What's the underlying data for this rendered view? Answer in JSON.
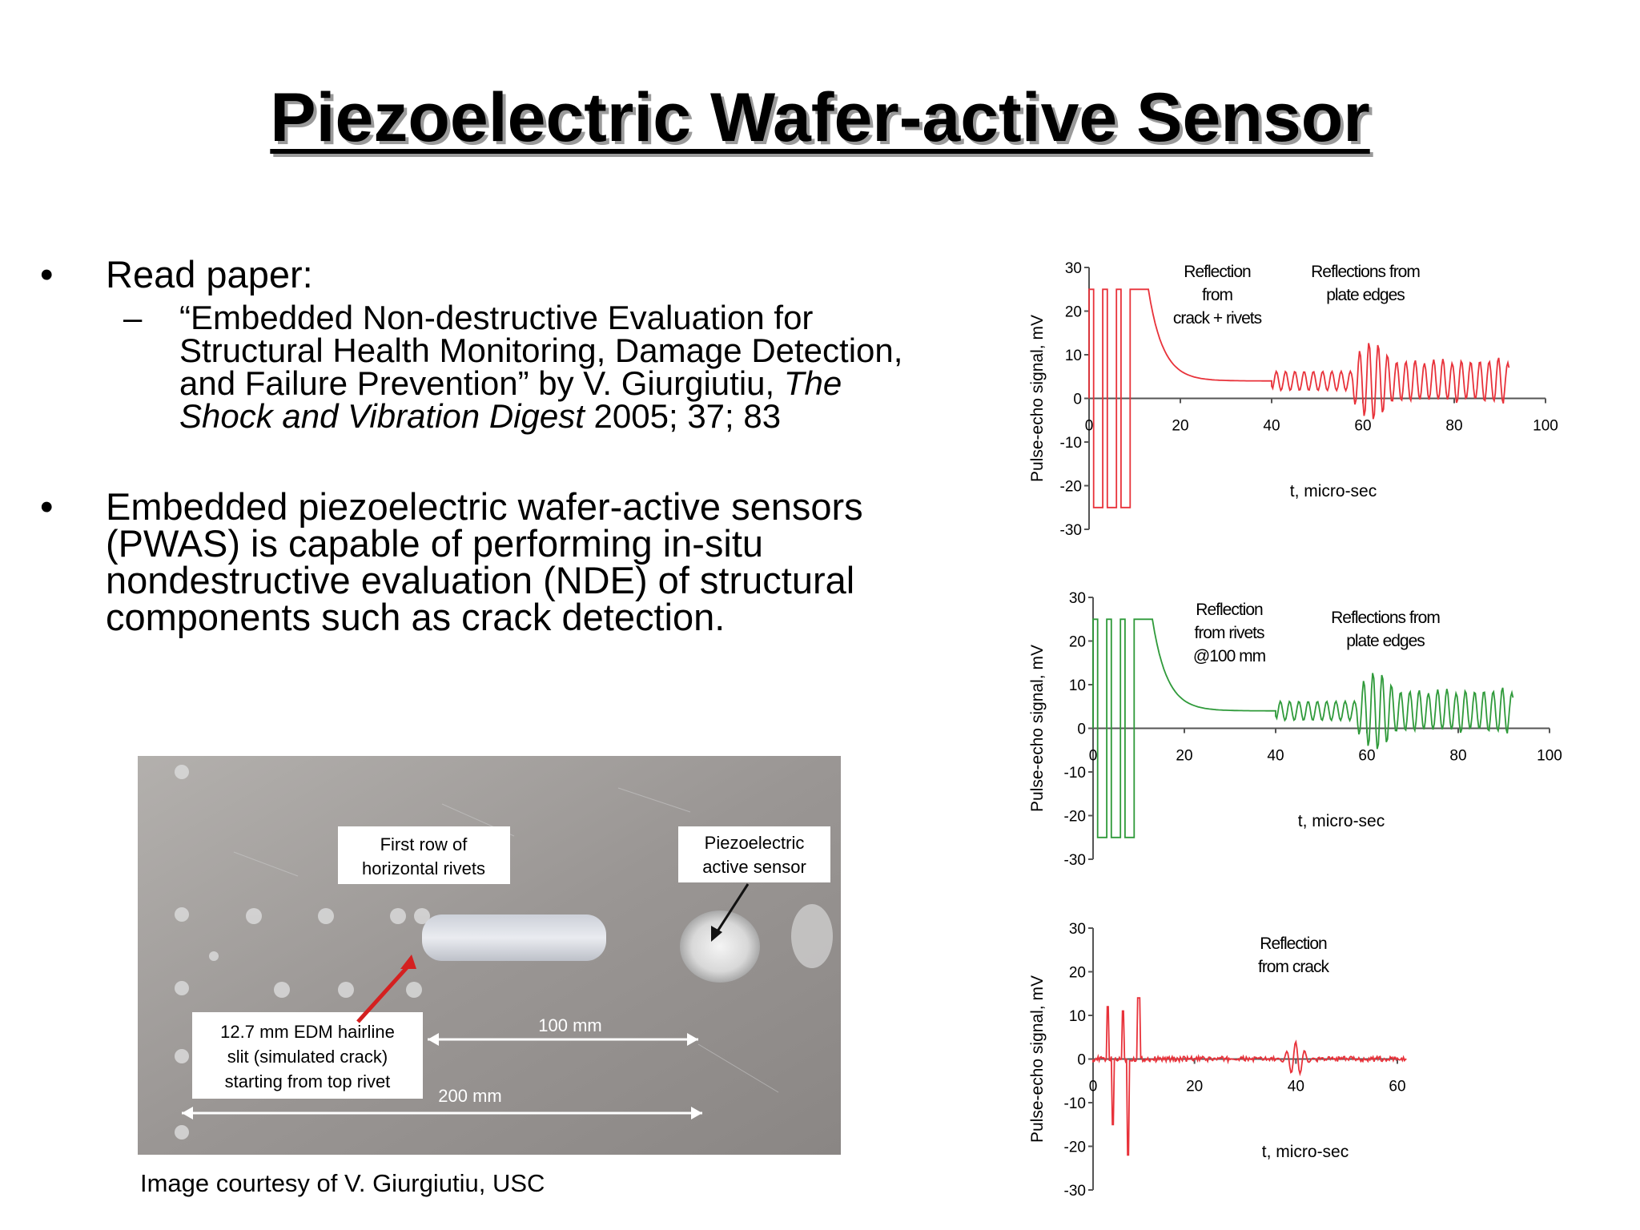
{
  "slide": {
    "title": "Piezoelectric Wafer-active Sensor",
    "bullets": [
      {
        "marker": "•",
        "text": "Read paper:",
        "sub": {
          "marker": "–",
          "lines": [
            "“Embedded Non-destructive Evaluation for",
            "Structural Health Monitoring, Damage Detection,",
            "and Failure Prevention” by V. Giurgiutiu, "
          ],
          "italic_1": "The",
          "italic_2": "Shock and Vibration Digest",
          "tail": " 2005; 37; 83"
        }
      },
      {
        "marker": "•",
        "lines": [
          "Embedded piezoelectric wafer-active sensors",
          "(PWAS) is capable of performing in-situ",
          "nondestructive evaluation (NDE) of structural",
          "components such as crack detection."
        ]
      }
    ],
    "credit": "Image courtesy of V. Giurgiutiu, USC"
  },
  "photo": {
    "label_rivets": [
      "First row of",
      "horizontal rivets"
    ],
    "label_sensor": [
      "Piezoelectric",
      "active sensor"
    ],
    "label_crack": [
      "12.7 mm EDM hairline",
      "slit (simulated crack)",
      "starting from top rivet"
    ],
    "dim_100": "100 mm",
    "dim_200": "200 mm",
    "colors": {
      "plate": "#9a9694",
      "arrow": "#d42020"
    }
  },
  "chart_data": [
    {
      "type": "line",
      "color": "#e8323a",
      "ylabel": "Pulse-echo signal, mV",
      "xlabel": "t, micro-sec",
      "xlim": [
        0,
        100
      ],
      "ylim": [
        -30,
        30
      ],
      "xticks": [
        0,
        20,
        40,
        60,
        80,
        100
      ],
      "yticks": [
        30,
        20,
        10,
        0,
        -10,
        -20,
        -30
      ],
      "annotations": [
        {
          "lines": [
            "Reflection",
            "from",
            "crack + rivets"
          ]
        },
        {
          "lines": [
            "Reflections from",
            "plate edges"
          ]
        }
      ],
      "signal": {
        "pulses_start": 0,
        "pulses_end": 13,
        "decay_end": 40,
        "end": 92,
        "baseline": 4
      }
    },
    {
      "type": "line",
      "color": "#2f9a3a",
      "ylabel": "Pulse-echo signal, mV",
      "xlabel": "t, micro-sec",
      "xlim": [
        0,
        100
      ],
      "ylim": [
        -30,
        30
      ],
      "xticks": [
        0,
        20,
        40,
        60,
        80,
        100
      ],
      "yticks": [
        30,
        20,
        10,
        0,
        -10,
        -20,
        -30
      ],
      "annotations": [
        {
          "lines": [
            "Reflection",
            "from rivets",
            "@100 mm"
          ]
        },
        {
          "lines": [
            "Reflections from",
            "plate edges"
          ]
        }
      ],
      "signal": {
        "pulses_start": 0,
        "pulses_end": 13,
        "decay_end": 40,
        "end": 92,
        "baseline": 4
      }
    },
    {
      "type": "line",
      "color": "#e8323a",
      "ylabel": "Pulse-echo signal, mV",
      "xlabel": "t, micro-sec",
      "xlim": [
        0,
        60
      ],
      "ylim": [
        -30,
        30
      ],
      "xticks": [
        0,
        20,
        40,
        60
      ],
      "yticks": [
        30,
        20,
        10,
        0,
        -10,
        -20,
        -30
      ],
      "annotations": [
        {
          "lines": [
            "Reflection",
            "from crack"
          ]
        }
      ],
      "signal": {
        "spikes": [
          [
            3,
            12
          ],
          [
            4,
            -15
          ],
          [
            6,
            11
          ],
          [
            7,
            -22
          ],
          [
            9,
            14
          ]
        ],
        "echo_at": 40,
        "end": 62,
        "baseline": 0
      }
    }
  ]
}
